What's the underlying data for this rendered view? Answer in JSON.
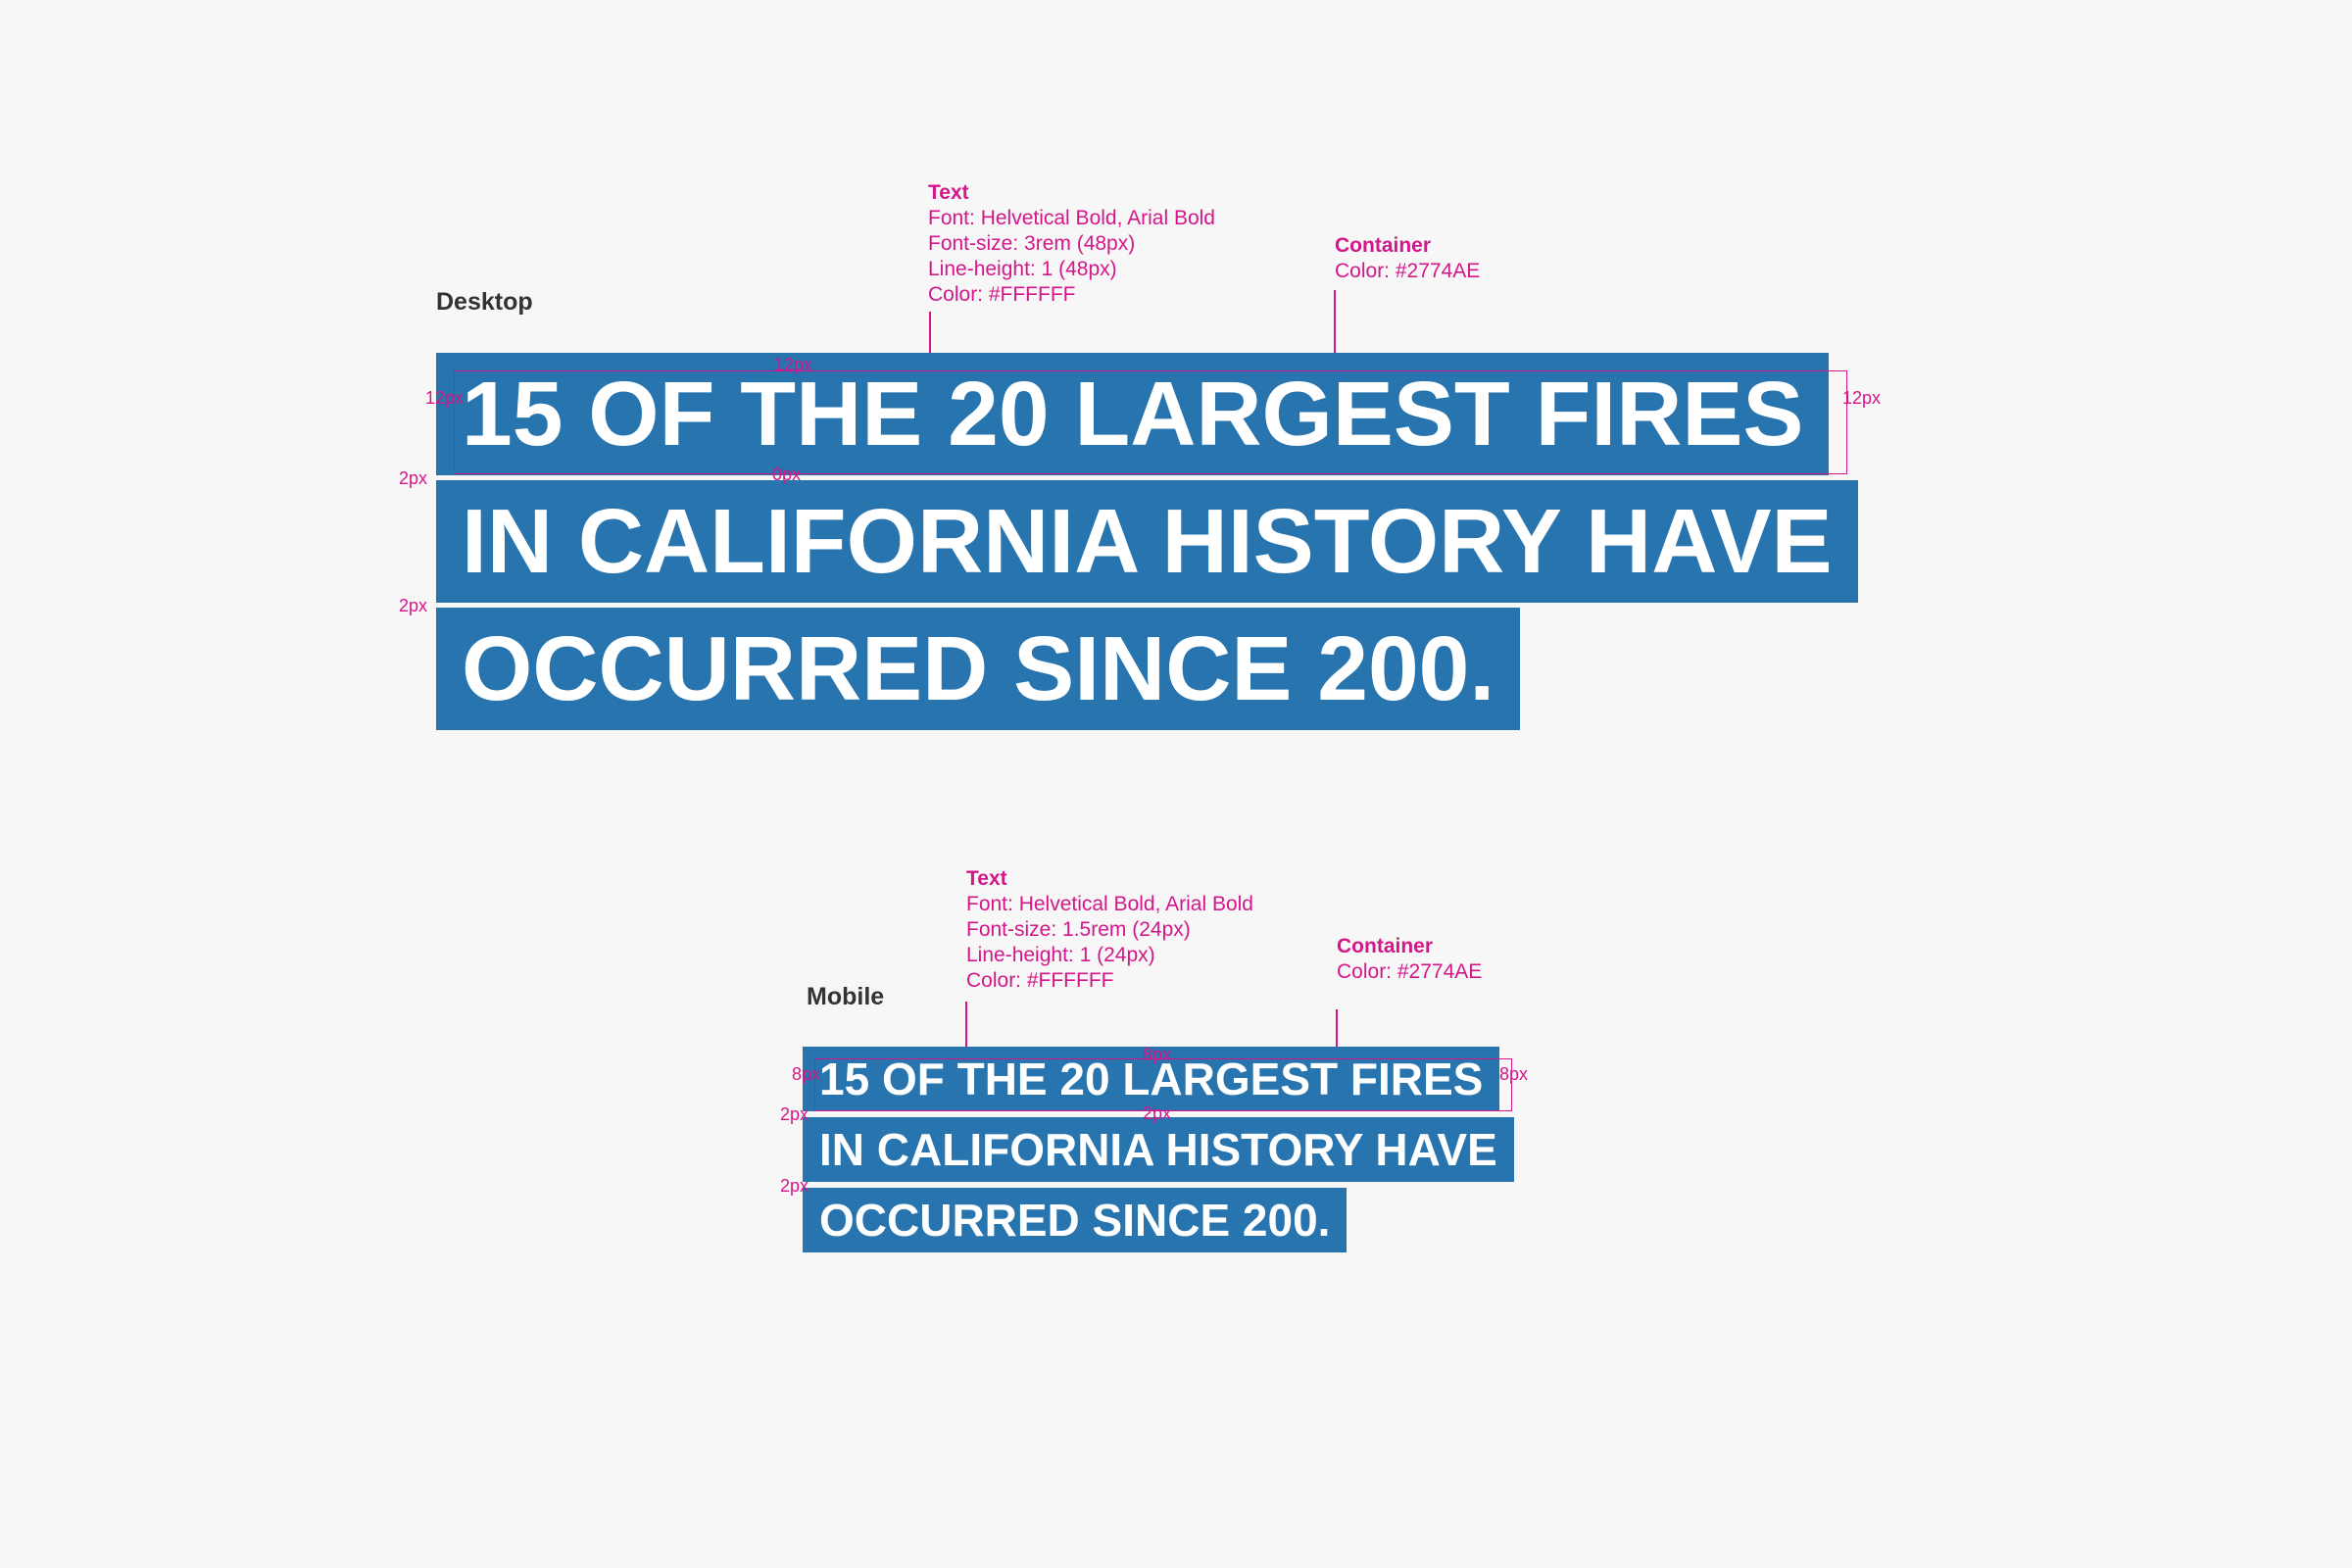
{
  "desktop": {
    "label": "Desktop",
    "text_spec": {
      "title": "Text",
      "lines": [
        "Font: Helvetical Bold, Arial Bold",
        "Font-size: 3rem (48px)",
        "Line-height: 1 (48px)",
        "Color: #FFFFFF"
      ]
    },
    "container_spec": {
      "title": "Container",
      "lines": [
        "Color: #2774AE"
      ]
    },
    "headline": [
      "15 OF THE 20 LARGEST FIRES",
      "IN CALIFORNIA HISTORY HAVE",
      "OCCURRED SINCE 200."
    ],
    "measurements": [
      "12px",
      "12px",
      "12px",
      "0px",
      "2px",
      "2px"
    ]
  },
  "mobile": {
    "label": "Mobile",
    "text_spec": {
      "title": "Text",
      "lines": [
        "Font: Helvetical Bold, Arial Bold",
        "Font-size: 1.5rem (24px)",
        "Line-height: 1 (24px)",
        "Color: #FFFFFF"
      ]
    },
    "container_spec": {
      "title": "Container",
      "lines": [
        "Color: #2774AE"
      ]
    },
    "headline": [
      "15 OF THE 20 LARGEST FIRES",
      "IN CALIFORNIA HISTORY HAVE",
      "OCCURRED SINCE 200."
    ],
    "measurements": [
      "8px",
      "8px",
      "8px",
      "2px",
      "2px",
      "2px"
    ]
  }
}
